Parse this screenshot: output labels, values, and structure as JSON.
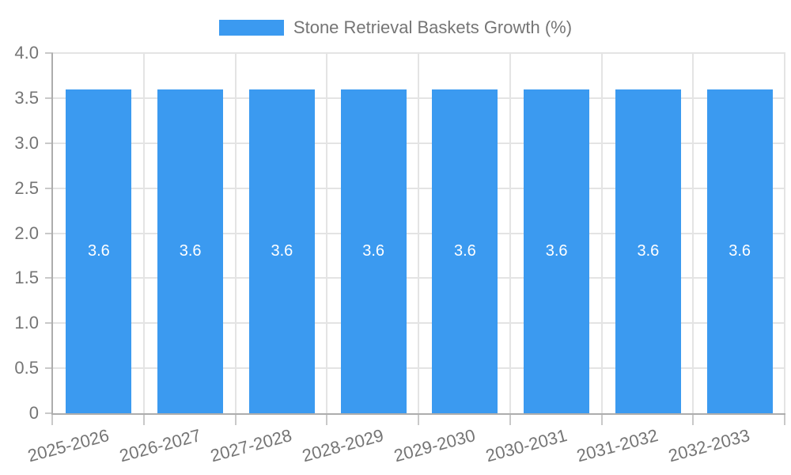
{
  "legend": {
    "label": "Stone Retrieval Baskets Growth (%)"
  },
  "chart_data": {
    "type": "bar",
    "title": "Stone Retrieval Baskets Growth (%)",
    "categories": [
      "2025-2026",
      "2026-2027",
      "2027-2028",
      "2028-2029",
      "2029-2030",
      "2030-2031",
      "2031-2032",
      "2032-2033"
    ],
    "values": [
      3.6,
      3.6,
      3.6,
      3.6,
      3.6,
      3.6,
      3.6,
      3.6
    ],
    "value_labels": [
      "3.6",
      "3.6",
      "3.6",
      "3.6",
      "3.6",
      "3.6",
      "3.6",
      "3.6"
    ],
    "xlabel": "",
    "ylabel": "",
    "ylim": [
      0,
      4
    ],
    "yticks": [
      "0",
      "0.5",
      "1.0",
      "1.5",
      "2.0",
      "2.5",
      "3.0",
      "3.5",
      "4.0"
    ],
    "grid": true,
    "legend_position": "top-center",
    "x_label_rotation_deg": -15
  },
  "colors": {
    "bar": "#3b9af0",
    "bar_label": "#ffffff",
    "grid": "#e4e4e4",
    "axis": "#adadad",
    "tick": "#c9c9c9",
    "text": "#757575",
    "background": "#ffffff"
  }
}
